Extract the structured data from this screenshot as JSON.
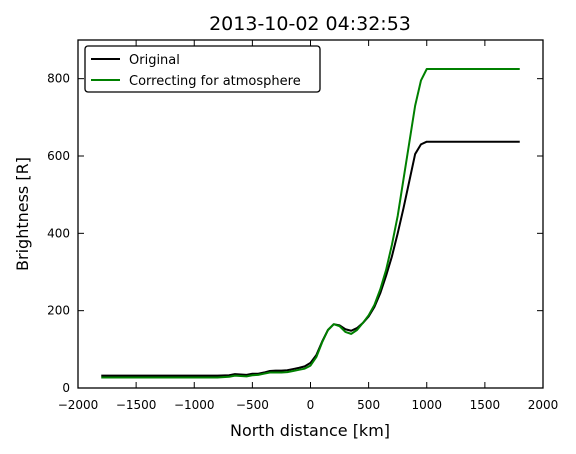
{
  "chart_data": {
    "type": "line",
    "title": "2013-10-02 04:32:53",
    "xlabel": "North distance [km]",
    "ylabel": "Brightness [R]",
    "xlim": [
      -2000,
      2000
    ],
    "ylim": [
      0,
      900
    ],
    "xticks": [
      -2000,
      -1500,
      -1000,
      -500,
      0,
      500,
      1000,
      1500,
      2000
    ],
    "yticks": [
      0,
      200,
      400,
      600,
      800
    ],
    "legend_position": "top-left",
    "series": [
      {
        "name": "Original",
        "color": "#000000",
        "points": [
          [
            -1800,
            32
          ],
          [
            -1400,
            32
          ],
          [
            -1000,
            32
          ],
          [
            -800,
            32
          ],
          [
            -700,
            33
          ],
          [
            -650,
            36
          ],
          [
            -600,
            35
          ],
          [
            -550,
            34
          ],
          [
            -500,
            37
          ],
          [
            -450,
            37
          ],
          [
            -400,
            40
          ],
          [
            -350,
            44
          ],
          [
            -300,
            45
          ],
          [
            -250,
            45
          ],
          [
            -200,
            46
          ],
          [
            -150,
            49
          ],
          [
            -100,
            52
          ],
          [
            -50,
            56
          ],
          [
            0,
            65
          ],
          [
            50,
            85
          ],
          [
            100,
            120
          ],
          [
            150,
            150
          ],
          [
            200,
            165
          ],
          [
            250,
            162
          ],
          [
            300,
            152
          ],
          [
            350,
            148
          ],
          [
            400,
            155
          ],
          [
            450,
            168
          ],
          [
            500,
            185
          ],
          [
            550,
            210
          ],
          [
            600,
            245
          ],
          [
            650,
            290
          ],
          [
            700,
            340
          ],
          [
            750,
            400
          ],
          [
            800,
            465
          ],
          [
            850,
            535
          ],
          [
            900,
            605
          ],
          [
            950,
            630
          ],
          [
            1000,
            637
          ],
          [
            1400,
            637
          ],
          [
            1800,
            637
          ]
        ]
      },
      {
        "name": "Correcting for atmosphere",
        "color": "#008000",
        "points": [
          [
            -1800,
            27
          ],
          [
            -1400,
            27
          ],
          [
            -1000,
            27
          ],
          [
            -800,
            27
          ],
          [
            -700,
            29
          ],
          [
            -650,
            32
          ],
          [
            -600,
            31
          ],
          [
            -550,
            30
          ],
          [
            -500,
            33
          ],
          [
            -450,
            34
          ],
          [
            -400,
            37
          ],
          [
            -350,
            40
          ],
          [
            -300,
            40
          ],
          [
            -250,
            40
          ],
          [
            -200,
            41
          ],
          [
            -150,
            44
          ],
          [
            -100,
            47
          ],
          [
            -50,
            50
          ],
          [
            0,
            58
          ],
          [
            50,
            80
          ],
          [
            100,
            118
          ],
          [
            150,
            150
          ],
          [
            200,
            165
          ],
          [
            250,
            160
          ],
          [
            300,
            145
          ],
          [
            350,
            140
          ],
          [
            400,
            150
          ],
          [
            450,
            168
          ],
          [
            500,
            188
          ],
          [
            550,
            215
          ],
          [
            600,
            255
          ],
          [
            650,
            305
          ],
          [
            700,
            370
          ],
          [
            750,
            445
          ],
          [
            800,
            540
          ],
          [
            850,
            635
          ],
          [
            900,
            730
          ],
          [
            950,
            795
          ],
          [
            1000,
            825
          ],
          [
            1400,
            825
          ],
          [
            1800,
            825
          ]
        ]
      }
    ]
  }
}
